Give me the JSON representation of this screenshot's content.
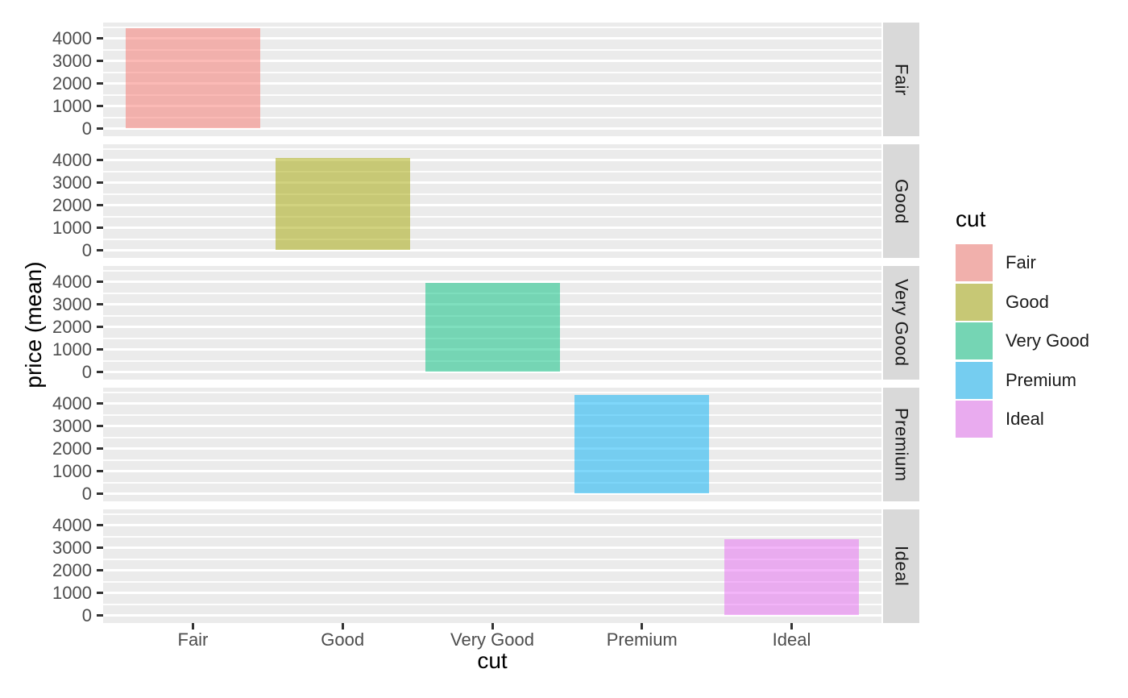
{
  "chart_data": {
    "type": "bar",
    "title": "",
    "xlabel": "cut",
    "ylabel": "price (mean)",
    "facet_variable": "cut",
    "facets": [
      "Fair",
      "Good",
      "Very Good",
      "Premium",
      "Ideal"
    ],
    "categories": [
      "Fair",
      "Good",
      "Very Good",
      "Premium",
      "Ideal"
    ],
    "values": [
      4450,
      4100,
      3950,
      4400,
      3400
    ],
    "bar_colors": [
      "#F8766D",
      "#A3A500",
      "#00BF7D",
      "#00B0F6",
      "#E76BF3"
    ],
    "bar_alpha": 0.5,
    "bar_rel_width": 0.9,
    "y_ticks": [
      0,
      1000,
      2000,
      3000,
      4000
    ],
    "y_minor_step": 500,
    "ylim": [
      -250,
      4720
    ],
    "grid": "horizontal major and minor white gridlines on",
    "legend": {
      "title": "cut",
      "position": "right",
      "entries": [
        "Fair",
        "Good",
        "Very Good",
        "Premium",
        "Ideal"
      ]
    },
    "theme": {
      "panel_bg": "#EBEBEB",
      "strip_bg": "#D9D9D9",
      "grid_color": "#FFFFFF",
      "tick_color": "#333333",
      "tick_label_color": "#4D4D4D",
      "text_color": "#1A1A1A",
      "page_bg": "#FFFFFF"
    }
  }
}
